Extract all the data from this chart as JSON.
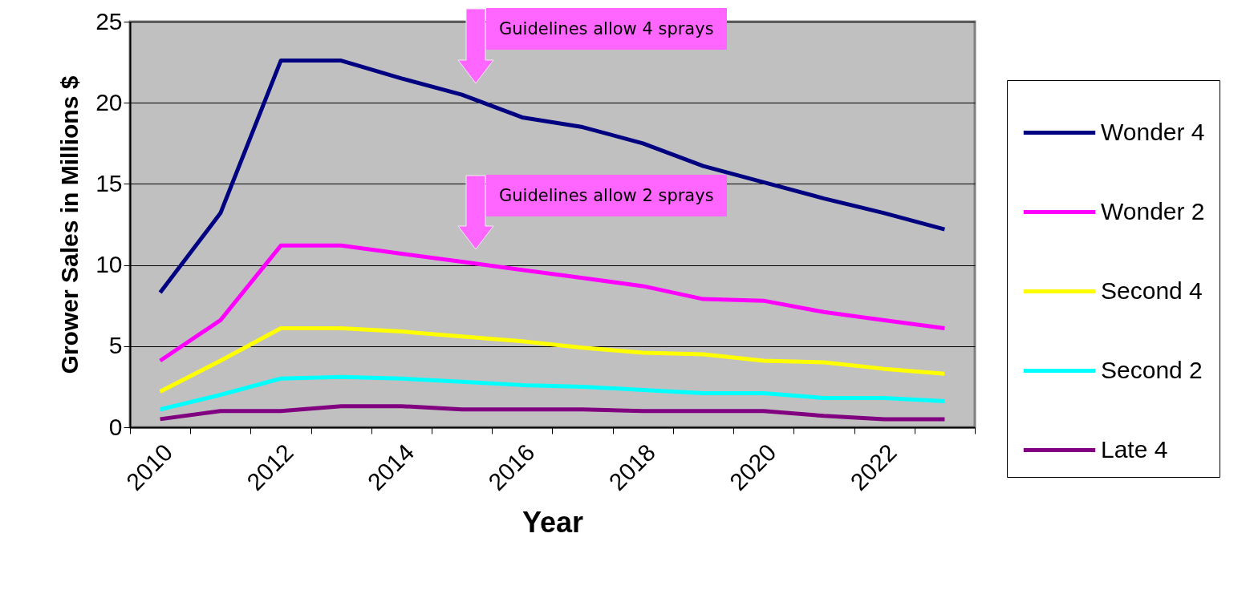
{
  "chart_data": {
    "type": "line",
    "xlabel": "Year",
    "ylabel": "Grower Sales in Millions $",
    "categories": [
      "2010",
      null,
      "2012",
      null,
      "2014",
      null,
      "2016",
      null,
      "2018",
      null,
      "2020",
      null,
      "2022",
      null
    ],
    "series": [
      {
        "name": "Wonder 4",
        "color": "#000080",
        "values": [
          8.3,
          13.2,
          22.6,
          22.6,
          21.5,
          20.5,
          19.1,
          18.5,
          17.5,
          16.1,
          15.1,
          14.1,
          13.2,
          12.2
        ]
      },
      {
        "name": "Wonder 2",
        "color": "#ff00ff",
        "values": [
          4.1,
          6.6,
          11.2,
          11.2,
          10.7,
          10.2,
          9.7,
          9.2,
          8.7,
          7.9,
          7.8,
          7.1,
          6.6,
          6.1
        ]
      },
      {
        "name": "Second 4",
        "color": "#ffff00",
        "values": [
          2.2,
          4.1,
          6.1,
          6.1,
          5.9,
          5.6,
          5.3,
          4.9,
          4.6,
          4.5,
          4.1,
          4.0,
          3.6,
          3.3
        ]
      },
      {
        "name": "Second 2",
        "color": "#00ffff",
        "values": [
          1.1,
          2.0,
          3.0,
          3.1,
          3.0,
          2.8,
          2.6,
          2.5,
          2.3,
          2.1,
          2.1,
          1.8,
          1.8,
          1.6
        ]
      },
      {
        "name": "Late 4",
        "color": "#800080",
        "values": [
          0.5,
          1.0,
          1.0,
          1.3,
          1.3,
          1.1,
          1.1,
          1.1,
          1.0,
          1.0,
          1.0,
          0.7,
          0.5,
          0.5
        ]
      }
    ],
    "ylim": [
      0,
      25
    ],
    "yticks": [
      0,
      5,
      10,
      15,
      20,
      25
    ],
    "grid": "y",
    "legend": "right",
    "annotations": [
      "Guidelines allow 4 sprays",
      "Guidelines allow 2 sprays"
    ]
  }
}
